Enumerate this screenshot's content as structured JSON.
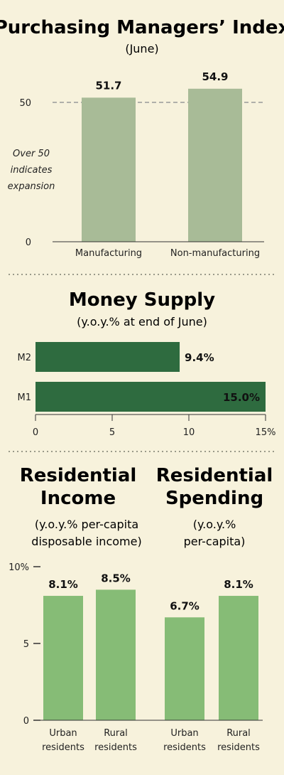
{
  "chart_data": [
    {
      "id": "pmi",
      "type": "bar",
      "title": "Purchasing Managers’ Index",
      "subtitle": "(June)",
      "categories": [
        "Manufacturing",
        "Non-manufacturing"
      ],
      "values": [
        51.7,
        54.9
      ],
      "value_labels": [
        "51.7",
        "54.9"
      ],
      "ylim": [
        0,
        60
      ],
      "yticks": [
        0,
        50
      ],
      "reference_line": 50,
      "annotation": [
        "Over 50",
        "indicates",
        "expansion"
      ],
      "bar_color": "#a8bb97"
    },
    {
      "id": "money_supply",
      "type": "bar",
      "orientation": "horizontal",
      "title": "Money Supply",
      "subtitle": "(y.o.y.% at end of June)",
      "categories": [
        "M2",
        "M1"
      ],
      "values": [
        9.4,
        15.0
      ],
      "value_labels": [
        "9.4%",
        "15.0%"
      ],
      "xlim": [
        0,
        15
      ],
      "xtick_labels": [
        "0",
        "5",
        "10",
        "15%"
      ],
      "bar_color": "#2e6b3f"
    },
    {
      "id": "residential",
      "type": "bar",
      "panels": [
        {
          "title": [
            "Residential",
            "Income"
          ],
          "subtitle": [
            "(y.o.y.% per-capita",
            "disposable income)"
          ],
          "categories": [
            [
              "Urban",
              "residents"
            ],
            [
              "Rural",
              "residents"
            ]
          ],
          "values": [
            8.1,
            8.5
          ],
          "value_labels": [
            "8.1%",
            "8.5%"
          ]
        },
        {
          "title": [
            "Residential",
            "Spending"
          ],
          "subtitle": [
            "(y.o.y.%",
            "per-capita)"
          ],
          "categories": [
            [
              "Urban",
              "residents"
            ],
            [
              "Rural",
              "residents"
            ]
          ],
          "values": [
            6.7,
            8.1
          ],
          "value_labels": [
            "6.7%",
            "8.1%"
          ]
        }
      ],
      "ylim": [
        0,
        10
      ],
      "ytick_labels": [
        "0",
        "5",
        "10%"
      ],
      "bar_color": "#86bc76"
    }
  ],
  "colors": {
    "background": "#f7f2dc",
    "divider": "#9a9a8a",
    "reference_line": "#999999"
  }
}
